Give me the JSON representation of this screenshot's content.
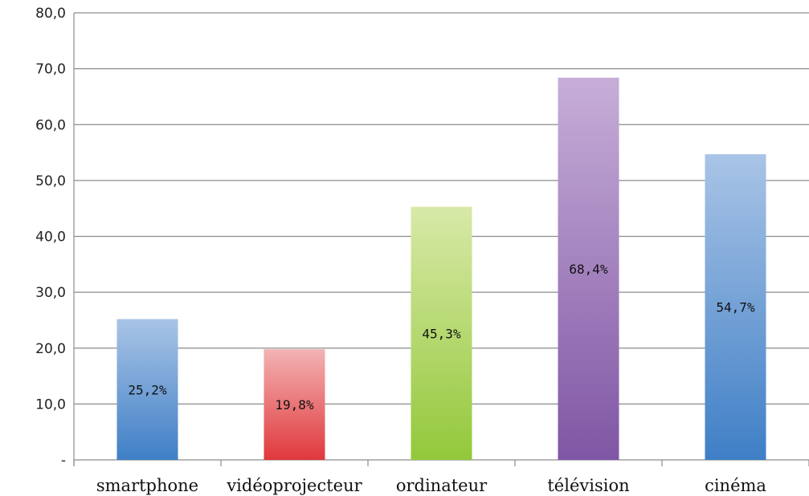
{
  "chart_data": {
    "type": "bar",
    "categories": [
      "smartphone",
      "vidéoprojecteur",
      "ordinateur",
      "télévision",
      "cinéma"
    ],
    "values": [
      25.2,
      19.8,
      45.3,
      68.4,
      54.7
    ],
    "data_labels": [
      "25,2%",
      "19,8%",
      "45,3%",
      "68,4%",
      "54,7%"
    ],
    "y_ticks": [
      "-",
      "10,0",
      "20,0",
      "30,0",
      "40,0",
      "50,0",
      "60,0",
      "70,0",
      "80,0"
    ],
    "ylim": [
      0,
      80
    ],
    "grid": true,
    "legend": "none",
    "colors": {
      "smartphone": [
        "#a9c4e6",
        "#3f7fc6"
      ],
      "vidéoprojecteur": [
        "#f3b3b3",
        "#e0383c"
      ],
      "ordinateur": [
        "#d8e9a8",
        "#93c83a"
      ],
      "télévision": [
        "#c7aed8",
        "#7f56a4"
      ],
      "cinéma": [
        "#a9c4e6",
        "#3f7fc6"
      ]
    }
  }
}
